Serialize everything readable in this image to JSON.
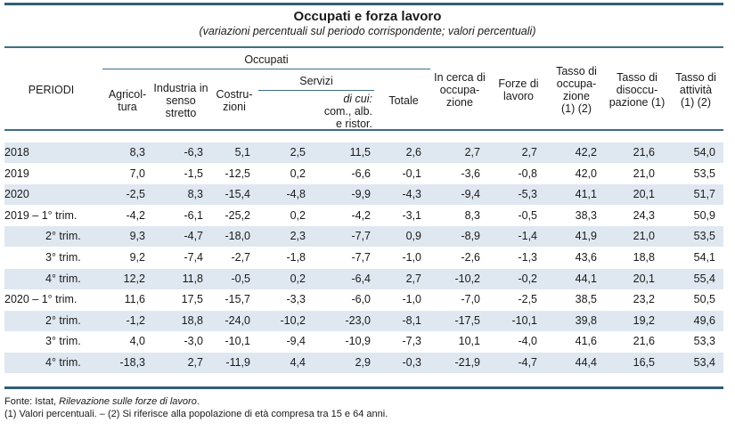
{
  "title": "Occupati e forza lavoro",
  "subtitle": "(variazioni percentuali sul periodo corrispondente; valori percentuali)",
  "header": {
    "periodi": "PERIODI",
    "occupati_group": "Occupati",
    "servizi_group": "Servizi",
    "agricoltura": [
      "Agricol-",
      "tura"
    ],
    "industria": [
      "Industria in",
      "senso",
      "stretto"
    ],
    "costruzioni": [
      "Costru-",
      "zioni"
    ],
    "servizi_total": "",
    "di_cui_label": "di cui:",
    "di_cui": [
      "com., alb.",
      "e ristor."
    ],
    "totale": "Totale",
    "in_cerca": [
      "In cerca di",
      "occupa-",
      "zione"
    ],
    "forze_lavoro": [
      "Forze di",
      "lavoro"
    ],
    "tasso_occ": [
      "Tasso di",
      "occupa-",
      "zione",
      "(1) (2)"
    ],
    "tasso_disocc": [
      "Tasso di",
      "disoccu-",
      "pazione (1)"
    ],
    "tasso_att": [
      "Tasso di",
      "attività",
      "(1) (2)"
    ]
  },
  "table": {
    "columns": [
      "PERIODI",
      "Agricoltura",
      "Industria in senso stretto",
      "Costruzioni",
      "Servizi",
      "di cui: com., alb. e ristor.",
      "Totale",
      "In cerca di occupazione",
      "Forze di lavoro",
      "Tasso di occupazione (1) (2)",
      "Tasso di disoccupazione (1)",
      "Tasso di attività (1) (2)"
    ],
    "rows": [
      {
        "period": "2018",
        "indent": false,
        "values": [
          "8,3",
          "-6,3",
          "5,1",
          "2,5",
          "11,5",
          "2,6",
          "2,7",
          "2,7",
          "42,2",
          "21,6",
          "54,0"
        ]
      },
      {
        "period": "2019",
        "indent": false,
        "values": [
          "7,0",
          "-1,5",
          "-12,5",
          "0,2",
          "-6,6",
          "-0,1",
          "-3,6",
          "-0,8",
          "42,0",
          "21,0",
          "53,5"
        ]
      },
      {
        "period": "2020",
        "indent": false,
        "values": [
          "-2,5",
          "8,3",
          "-15,4",
          "-4,8",
          "-9,9",
          "-4,3",
          "-9,4",
          "-5,3",
          "41,1",
          "20,1",
          "51,7"
        ]
      },
      {
        "period": "2019 – 1° trim.",
        "indent": false,
        "values": [
          "-4,2",
          "-6,1",
          "-25,2",
          "0,2",
          "-4,2",
          "-3,1",
          "8,3",
          "-0,5",
          "38,3",
          "24,3",
          "50,9"
        ]
      },
      {
        "period": "2° trim.",
        "indent": true,
        "values": [
          "9,3",
          "-4,7",
          "-18,0",
          "2,3",
          "-7,7",
          "0,9",
          "-8,9",
          "-1,4",
          "41,9",
          "21,0",
          "53,5"
        ]
      },
      {
        "period": "3° trim.",
        "indent": true,
        "values": [
          "9,2",
          "-7,4",
          "-2,7",
          "-1,8",
          "-7,7",
          "-1,0",
          "-2,6",
          "-1,3",
          "43,6",
          "18,8",
          "54,1"
        ]
      },
      {
        "period": "4° trim.",
        "indent": true,
        "values": [
          "12,2",
          "11,8",
          "-0,5",
          "0,2",
          "-6,4",
          "2,7",
          "-10,2",
          "-0,2",
          "44,1",
          "20,1",
          "55,4"
        ]
      },
      {
        "period": "2020 – 1° trim.",
        "indent": false,
        "values": [
          "11,6",
          "17,5",
          "-15,7",
          "-3,3",
          "-6,0",
          "-1,0",
          "-7,0",
          "-2,5",
          "38,5",
          "23,2",
          "50,5"
        ]
      },
      {
        "period": "2° trim.",
        "indent": true,
        "values": [
          "-1,2",
          "18,8",
          "-24,0",
          "-10,2",
          "-23,0",
          "-8,1",
          "-17,5",
          "-10,1",
          "39,8",
          "19,2",
          "49,6"
        ]
      },
      {
        "period": "3° trim.",
        "indent": true,
        "values": [
          "4,0",
          "-3,0",
          "-10,1",
          "-9,4",
          "-10,9",
          "-7,3",
          "10,1",
          "-4,0",
          "41,6",
          "21,6",
          "53,3"
        ]
      },
      {
        "period": "4° trim.",
        "indent": true,
        "values": [
          "-18,3",
          "2,7",
          "-11,9",
          "4,4",
          "2,9",
          "-0,3",
          "-21,9",
          "-4,7",
          "44,4",
          "16,5",
          "53,4"
        ]
      }
    ]
  },
  "footnotes": {
    "source_prefix": "Fonte: Istat, ",
    "source_title": "Rilevazione sulle forze di lavoro",
    "source_suffix": ".",
    "notes": "(1) Valori percentuali. – (2) Si riferisce alla popolazione di età compresa tra 15 e 64 anni."
  },
  "colors": {
    "rule": "#2f5f74",
    "row_shade": "#dfe8f1"
  }
}
